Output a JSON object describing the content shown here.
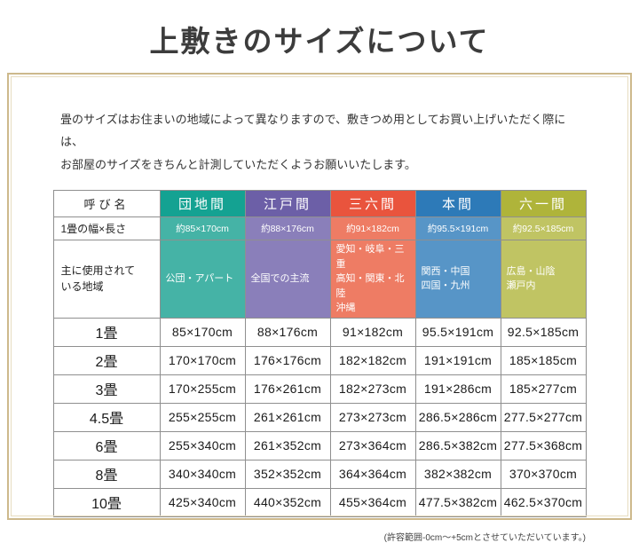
{
  "page": {
    "title": "上敷きのサイズについて",
    "intro_line1": "畳のサイズはお住まいの地域によって異なりますので、敷きつめ用としてお買い上げいただく際には、",
    "intro_line2": "お部屋のサイズをきちんと計測していただくようお願いいたします。",
    "footnote": "(許容範囲-0cm～+5cmとさせていただいています。)"
  },
  "table": {
    "corner_label": "呼び名",
    "row_labels": {
      "width_length": "1畳の幅×長さ",
      "regions": "主に使用されて\nいる地域"
    },
    "columns": [
      {
        "name": "団地間",
        "color": "#14a292",
        "color_light": "#45b3a6",
        "width_length": "約85×170cm",
        "regions": "公団・アパート"
      },
      {
        "name": "江戸間",
        "color": "#6c5fa7",
        "color_light": "#8a7fba",
        "width_length": "約88×176cm",
        "regions": "全国での主流"
      },
      {
        "name": "三六間",
        "color": "#e9543d",
        "color_light": "#ee7c64",
        "width_length": "約91×182cm",
        "regions": "愛知・岐阜・三重\n高知・関東・北陸\n沖縄"
      },
      {
        "name": "本間",
        "color": "#2d7ab8",
        "color_light": "#5795c7",
        "width_length": "約95.5×191cm",
        "regions": "関西・中国\n四国・九州"
      },
      {
        "name": "六一間",
        "color": "#afb43a",
        "color_light": "#c0c463",
        "width_length": "約92.5×185cm",
        "regions": "広島・山陰\n瀬戸内"
      }
    ],
    "size_rows": [
      {
        "label": "1畳",
        "values": [
          "85×170cm",
          "88×176cm",
          "91×182cm",
          "95.5×191cm",
          "92.5×185cm"
        ]
      },
      {
        "label": "2畳",
        "values": [
          "170×170cm",
          "176×176cm",
          "182×182cm",
          "191×191cm",
          "185×185cm"
        ]
      },
      {
        "label": "3畳",
        "values": [
          "170×255cm",
          "176×261cm",
          "182×273cm",
          "191×286cm",
          "185×277cm"
        ]
      },
      {
        "label": "4.5畳",
        "values": [
          "255×255cm",
          "261×261cm",
          "273×273cm",
          "286.5×286cm",
          "277.5×277cm"
        ]
      },
      {
        "label": "6畳",
        "values": [
          "255×340cm",
          "261×352cm",
          "273×364cm",
          "286.5×382cm",
          "277.5×368cm"
        ]
      },
      {
        "label": "8畳",
        "values": [
          "340×340cm",
          "352×352cm",
          "364×364cm",
          "382×382cm",
          "370×370cm"
        ]
      },
      {
        "label": "10畳",
        "values": [
          "425×340cm",
          "440×352cm",
          "455×364cm",
          "477.5×382cm",
          "462.5×370cm"
        ]
      }
    ]
  }
}
